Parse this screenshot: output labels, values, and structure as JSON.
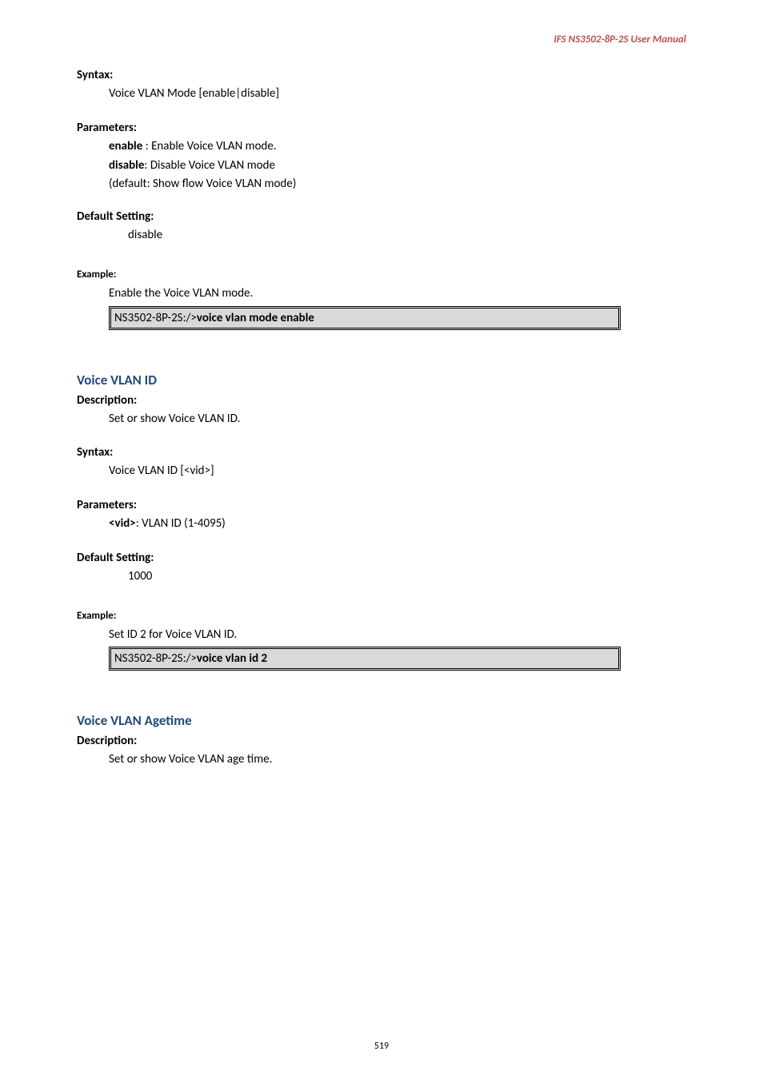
{
  "header": {
    "text": "IFS  NS3502-8P-2S  User  Manual",
    "color": "#c0504d"
  },
  "sections": [
    {
      "heading": "Syntax:",
      "lines": [
        {
          "text": "Voice VLAN Mode [enable|disable]"
        }
      ]
    },
    {
      "heading": "Parameters:",
      "lines": [
        {
          "prefix_bold": "enable",
          "text": " : Enable Voice VLAN mode."
        },
        {
          "prefix_bold": "disable",
          "text": ": Disable Voice VLAN mode"
        },
        {
          "text": "(default: Show flow Voice VLAN mode)"
        }
      ]
    },
    {
      "heading": "Default Setting:",
      "lines": [
        {
          "text": "disable",
          "extra_indent": true
        }
      ]
    }
  ],
  "example1": {
    "heading": "Example:",
    "line": "Enable the Voice VLAN mode.",
    "code_prefix": "NS3502-8P-2S:/>",
    "code_bold": "voice vlan mode enable"
  },
  "blue1": {
    "title": "Voice VLAN ID",
    "color": "#1f497d",
    "blocks": [
      {
        "heading": "Description:",
        "lines": [
          {
            "text": "Set or show Voice VLAN ID."
          }
        ]
      },
      {
        "heading": "Syntax:",
        "lines": [
          {
            "text": "Voice VLAN ID [<vid>]"
          }
        ]
      },
      {
        "heading": "Parameters:",
        "lines": [
          {
            "prefix_bold": "<vid>",
            "text": ": VLAN ID (1-4095)"
          }
        ]
      },
      {
        "heading": "Default Setting:",
        "lines": [
          {
            "text": "1000",
            "extra_indent": true
          }
        ]
      }
    ],
    "example": {
      "heading": "Example:",
      "line": "Set ID 2 for Voice VLAN ID.",
      "code_prefix": "NS3502-8P-2S:/>",
      "code_bold": "voice vlan id 2"
    }
  },
  "blue2": {
    "title": "Voice VLAN Agetime",
    "color": "#1f497d",
    "blocks": [
      {
        "heading": "Description:",
        "lines": [
          {
            "text": "Set or show Voice VLAN age time."
          }
        ]
      }
    ]
  },
  "footer": {
    "pagenum": "519"
  }
}
